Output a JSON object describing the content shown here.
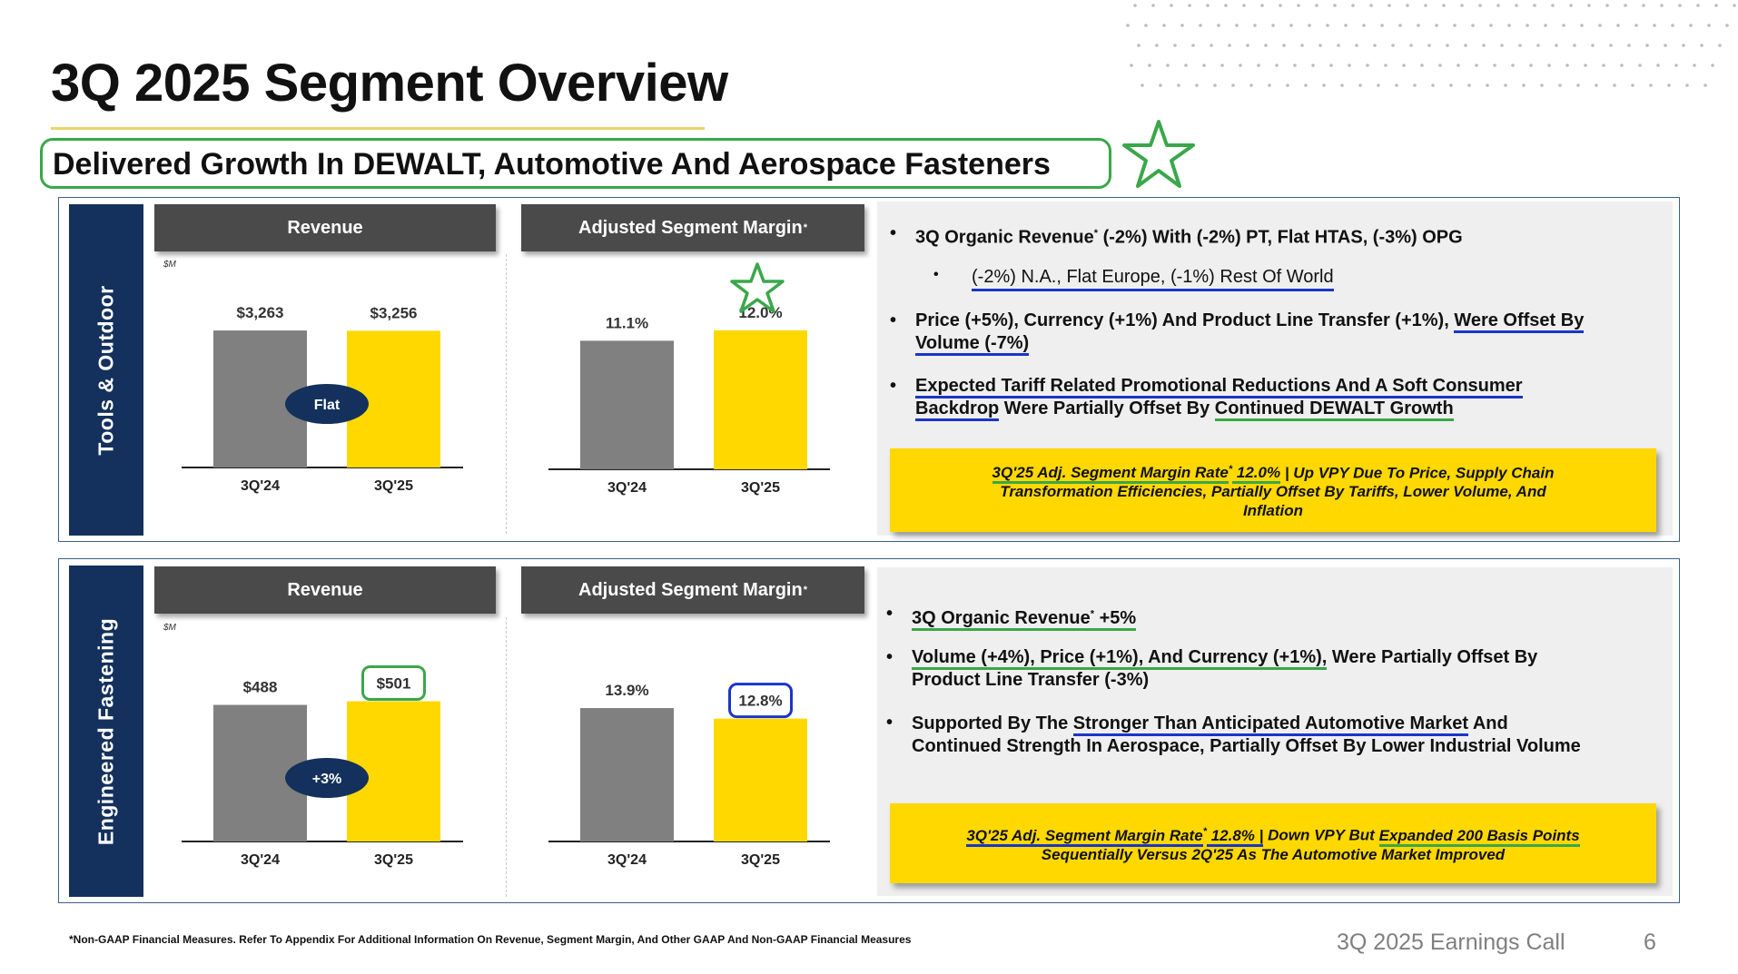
{
  "title": "3Q 2025 Segment Overview",
  "subtitle": "Delivered Growth In DEWALT, Automotive And Aerospace Fasteners",
  "colors": {
    "navy": "#13315c",
    "gray_bar": "#808080",
    "yellow_bar": "#ffd800",
    "green_highlight": "#3aa74a",
    "blue_highlight": "#1a35c8",
    "header_gray": "#4a4a4a"
  },
  "segments": {
    "tools": {
      "label": "Tools & Outdoor",
      "revenue_header": "Revenue",
      "margin_header": "Adjusted Segment Margin",
      "margin_header_mark": "*",
      "unit": "$M",
      "revenue_badge": "Flat",
      "bullets": {
        "b1_a": "3Q Organic Revenue",
        "b1_mark": "*",
        "b1_b": " (-2%) With (-2%) PT, Flat HTAS, (-3%) OPG",
        "b2": "(-2%) N.A.,  Flat Europe, (-1%) Rest Of World",
        "b3_a": "Price (+5%), Currency (+1%) And Product Line Transfer (+1%), ",
        "b3_u": "Were Offset By",
        "b3_c": "Volume (-7%)",
        "b4_u1": "Expected Tariff Related Promotional Reductions And A Soft Consumer ",
        "b4_u2": "Backdrop",
        "b4_b": " Were Partially Offset By ",
        "b4_u3": "Continued DEWALT Growth"
      },
      "callout": {
        "u": "3Q'25 Adj. Segment Margin Rate",
        "mark": "*",
        "u2": " 12.0%",
        "rest1": " | Up VPY Due To Price, Supply Chain",
        "line2": "Transformation Efficiencies, Partially Offset By Tariffs, Lower Volume, And",
        "line3": "Inflation"
      }
    },
    "fastening": {
      "label": "Engineered Fastening",
      "revenue_header": "Revenue",
      "margin_header": "Adjusted Segment Margin",
      "margin_header_mark": "*",
      "unit": "$M",
      "revenue_badge": "+3%",
      "bullets": {
        "b1_u": "3Q Organic Revenue",
        "b1_mark": "*",
        "b1_b": " +5%",
        "b2_u": "Volume (+4%), Price (+1%), And Currency (+1%),",
        "b2_b": " Were Partially Offset By",
        "b2_c": "Product Line Transfer (-3%)",
        "b3_a": "Supported By The ",
        "b3_u": "Stronger Than Anticipated Automotive Market",
        "b3_b": " And",
        "b3_c": "Continued Strength In Aerospace, Partially Offset By Lower Industrial Volume"
      },
      "callout": {
        "u": "3Q'25 Adj. Segment Margin Rate",
        "mark": "*",
        "u2": " 12.8% |",
        "rest1": " Down VPY But ",
        "u3": "Expanded 200 Basis Points",
        "line2": "Sequentially Versus 2Q'25 As The Automotive Market Improved"
      }
    }
  },
  "chart_data": [
    {
      "id": "tools-revenue",
      "type": "bar",
      "title": "Revenue",
      "unit": "$M",
      "categories": [
        "3Q'24",
        "3Q'25"
      ],
      "values": [
        3263,
        3256
      ],
      "labels": [
        "$3,263",
        "$3,256"
      ],
      "ylim": [
        0,
        4000
      ],
      "annotation": "Flat"
    },
    {
      "id": "tools-margin",
      "type": "bar",
      "title": "Adjusted Segment Margin*",
      "categories": [
        "3Q'24",
        "3Q'25"
      ],
      "values": [
        11.1,
        12.0
      ],
      "labels": [
        "11.1%",
        "12.0%"
      ],
      "ylim": [
        0,
        14.5
      ]
    },
    {
      "id": "fastening-revenue",
      "type": "bar",
      "title": "Revenue",
      "unit": "$M",
      "categories": [
        "3Q'24",
        "3Q'25"
      ],
      "values": [
        488,
        501
      ],
      "labels": [
        "$488",
        "$501"
      ],
      "ylim": [
        0,
        600
      ],
      "annotation": "+3%"
    },
    {
      "id": "fastening-margin",
      "type": "bar",
      "title": "Adjusted Segment Margin*",
      "categories": [
        "3Q'24",
        "3Q'25"
      ],
      "values": [
        13.9,
        12.8
      ],
      "labels": [
        "13.9%",
        "12.8%"
      ],
      "ylim": [
        0,
        17.5
      ]
    }
  ],
  "footnote": "*Non-GAAP Financial Measures. Refer To Appendix For Additional Information On Revenue, Segment Margin, And Other GAAP And Non-GAAP Financial Measures",
  "footer": "3Q 2025 Earnings Call",
  "page_number": "6"
}
